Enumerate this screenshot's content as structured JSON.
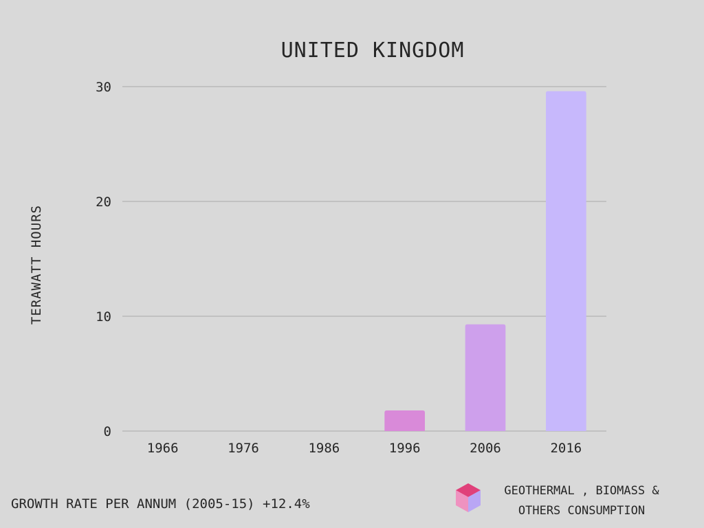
{
  "chart_data": {
    "type": "bar",
    "title": "UNITED KINGDOM",
    "ylabel": "TERAWATT HOURS",
    "xlabel": "",
    "categories": [
      "1966",
      "1976",
      "1986",
      "1996",
      "2006",
      "2016"
    ],
    "series": [
      {
        "name": "GEOTHERMAL , BIOMASS & OTHERS CONSUMPTION",
        "values": [
          0,
          0,
          0,
          1.8,
          9.3,
          29.6
        ]
      }
    ],
    "ylim": [
      0,
      30
    ],
    "yticks": [
      0,
      10,
      20,
      30
    ],
    "grid": true,
    "legend_position": "bottom-right",
    "bar_colors": [
      "#d98ad9",
      "#d98ad9",
      "#d98ad9",
      "#d98ad9",
      "#cea0ec",
      "#c7b8fc"
    ]
  },
  "footer": {
    "growth_note": "GROWTH RATE PER ANNUM (2005-15) +12.4%"
  },
  "legend": {
    "icon": "cube-icon",
    "label": "GEOTHERMAL , BIOMASS &\nOTHERS CONSUMPTION"
  }
}
